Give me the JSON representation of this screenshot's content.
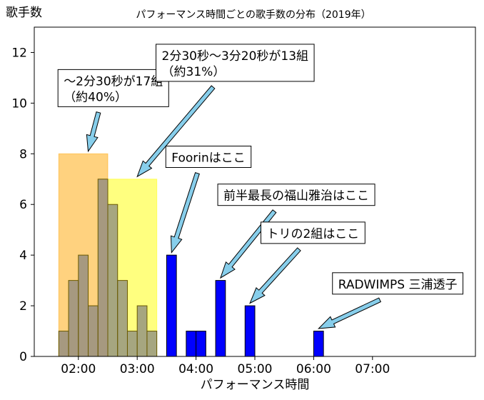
{
  "chart_data": {
    "type": "bar",
    "title": "パフォーマンス時間ごとの歌手数の分布（2019年）",
    "xlabel": "パフォーマンス時間",
    "ylabel": "歌手数",
    "ylim": [
      0,
      13
    ],
    "yticks": [
      0,
      2,
      4,
      6,
      8,
      10,
      12
    ],
    "xlim_seconds": [
      75,
      525
    ],
    "xticks": [
      "02:00",
      "03:00",
      "04:00",
      "05:00",
      "06:00",
      "07:00"
    ],
    "xticks_seconds": [
      120,
      180,
      240,
      300,
      360,
      420
    ],
    "highlight_bands": [
      {
        "label": "〜2分30秒",
        "x0_seconds": 100,
        "x1_seconds": 150,
        "height": 8,
        "color": "#ffa500"
      },
      {
        "label": "2分30秒〜3分20秒",
        "x0_seconds": 150,
        "x1_seconds": 200,
        "height": 7,
        "color": "#ffff00"
      }
    ],
    "bar_width_seconds": 10,
    "bars": [
      {
        "start_seconds": 100,
        "count": 1,
        "group": "highlight"
      },
      {
        "start_seconds": 110,
        "count": 3,
        "group": "highlight"
      },
      {
        "start_seconds": 120,
        "count": 4,
        "group": "highlight"
      },
      {
        "start_seconds": 130,
        "count": 2,
        "group": "highlight"
      },
      {
        "start_seconds": 140,
        "count": 7,
        "group": "highlight"
      },
      {
        "start_seconds": 150,
        "count": 6,
        "group": "highlight"
      },
      {
        "start_seconds": 160,
        "count": 3,
        "group": "highlight"
      },
      {
        "start_seconds": 170,
        "count": 1,
        "group": "highlight"
      },
      {
        "start_seconds": 180,
        "count": 2,
        "group": "highlight"
      },
      {
        "start_seconds": 190,
        "count": 1,
        "group": "highlight"
      },
      {
        "start_seconds": 210,
        "count": 4,
        "group": "other"
      },
      {
        "start_seconds": 230,
        "count": 1,
        "group": "other"
      },
      {
        "start_seconds": 240,
        "count": 1,
        "group": "other"
      },
      {
        "start_seconds": 260,
        "count": 3,
        "group": "other"
      },
      {
        "start_seconds": 290,
        "count": 2,
        "group": "other"
      },
      {
        "start_seconds": 360,
        "count": 1,
        "group": "other"
      }
    ],
    "colors": {
      "highlight_fill": "#808080",
      "highlight_edge": "#6b5a00",
      "other_fill": "#0000ff",
      "other_edge": "#000000",
      "arrow_fill": "#87ceeb"
    },
    "annotations": [
      {
        "lines": [
          "〜2分30秒が17組",
          "（約40%）"
        ],
        "target_seconds": 130,
        "target_count": 8.1,
        "box_seconds": 105,
        "box_count": 10.0
      },
      {
        "lines": [
          "2分30秒〜3分20秒が13組",
          "（約31%）"
        ],
        "target_seconds": 180,
        "target_count": 7.1,
        "box_seconds": 205,
        "box_count": 11.0
      },
      {
        "lines": [
          "Foorinはここ"
        ],
        "target_seconds": 215,
        "target_count": 4.1,
        "box_seconds": 215,
        "box_count": 7.6
      },
      {
        "lines": [
          "前半最長の福山雅治はここ"
        ],
        "target_seconds": 265,
        "target_count": 3.1,
        "box_seconds": 268,
        "box_count": 6.1
      },
      {
        "lines": [
          "トリの2組はここ"
        ],
        "target_seconds": 295,
        "target_count": 2.1,
        "box_seconds": 312,
        "box_count": 4.6
      },
      {
        "lines": [
          "RADWIMPS 三浦透子"
        ],
        "target_seconds": 365,
        "target_count": 1.1,
        "box_seconds": 385,
        "box_count": 2.6
      }
    ]
  }
}
